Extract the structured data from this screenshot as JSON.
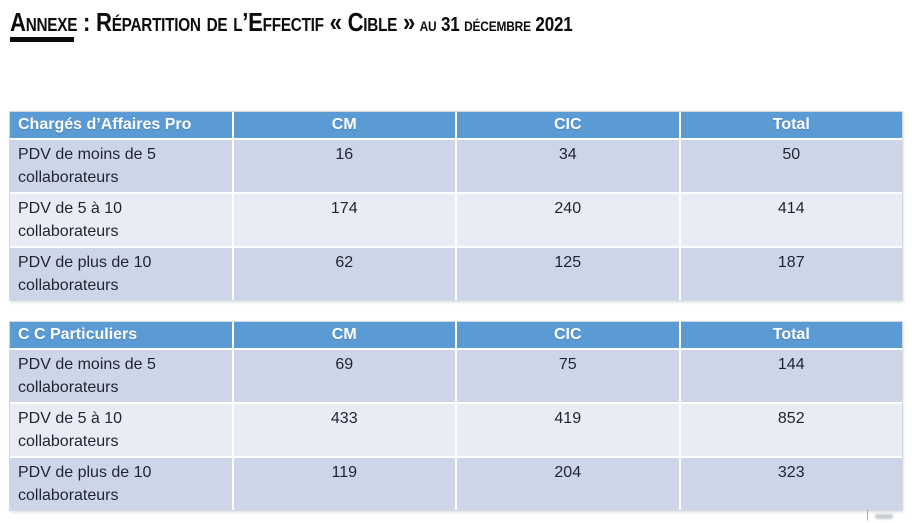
{
  "title": {
    "main": "Annexe : Répartition de l’Effectif « Cible »",
    "suffix": " au 31 décembre 2021"
  },
  "colors": {
    "header_bg": "#5B9BD5",
    "header_text": "#FFFFFF",
    "band_dark": "#CDD6E8",
    "band_light": "#E9ECF4",
    "cell_text": "#1F2430",
    "title_text": "#0C0C0C"
  },
  "tables": [
    {
      "title": "Chargés d’Affaires Pro",
      "columns": [
        "CM",
        "CIC",
        "Total"
      ],
      "rows": [
        {
          "label": "PDV de moins de 5 collaborateurs",
          "values": [
            "16",
            "34",
            "50"
          ]
        },
        {
          "label": "PDV de 5 à 10 collaborateurs",
          "values": [
            "174",
            "240",
            "414"
          ]
        },
        {
          "label": "PDV de plus de 10 collaborateurs",
          "values": [
            "62",
            "125",
            "187"
          ]
        }
      ]
    },
    {
      "title": "C C Particuliers",
      "columns": [
        "CM",
        "CIC",
        "Total"
      ],
      "rows": [
        {
          "label": "PDV de moins de 5 collaborateurs",
          "values": [
            "69",
            "75",
            "144"
          ]
        },
        {
          "label": "PDV de 5 à 10 collaborateurs",
          "values": [
            "433",
            "419",
            "852"
          ]
        },
        {
          "label": "PDV de plus de 10 collaborateurs",
          "values": [
            "119",
            "204",
            "323"
          ]
        }
      ]
    }
  ],
  "footer": {
    "mark": "|"
  }
}
